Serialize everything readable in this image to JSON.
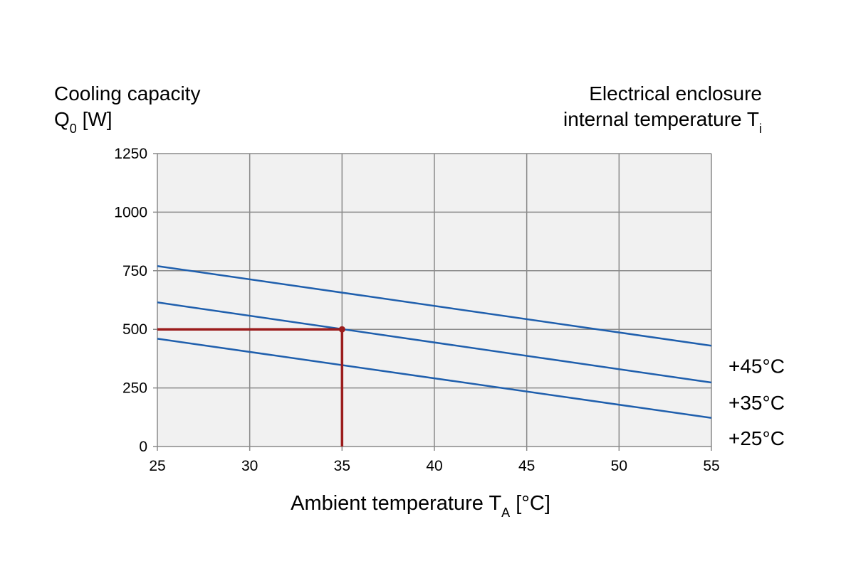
{
  "chart_data": {
    "type": "line",
    "ylabel": {
      "main": "Cooling capacity",
      "sym": "Q",
      "sub": "0",
      "unit": " [W]"
    },
    "right_label": {
      "line1": "Electrical enclosure",
      "line2_main": "internal temperature T",
      "line2_sub": "i"
    },
    "xlabel": {
      "main": "Ambient temperature T",
      "sub": "A",
      "unit": " [°C]"
    },
    "xlim": [
      25,
      55
    ],
    "ylim": [
      0,
      1250
    ],
    "xticks": [
      "25",
      "30",
      "35",
      "40",
      "45",
      "50",
      "55"
    ],
    "yticks": [
      "0",
      "250",
      "500",
      "750",
      "1000",
      "1250"
    ],
    "grid": true,
    "series": [
      {
        "name": "+45°C",
        "x": [
          25,
          55
        ],
        "y": [
          770,
          430
        ],
        "color": "#1f5fad"
      },
      {
        "name": "+35°C",
        "x": [
          25,
          55
        ],
        "y": [
          615,
          273
        ],
        "color": "#1f5fad"
      },
      {
        "name": "+25°C",
        "x": [
          25,
          55
        ],
        "y": [
          460,
          122
        ],
        "color": "#1f5fad"
      }
    ],
    "reference": {
      "x": 35,
      "y": 500,
      "color": "#9b1c1c"
    },
    "colors": {
      "plot_bg": "#f1f1f1",
      "grid": "#8a8a8a"
    }
  }
}
